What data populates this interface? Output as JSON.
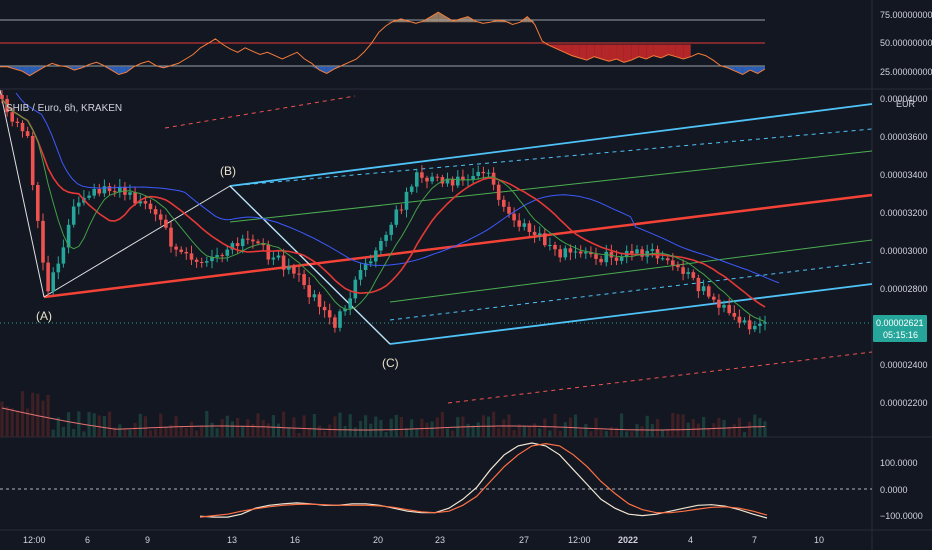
{
  "header": {
    "title": "SHIB / Euro, 6h, KRAKEN"
  },
  "price_scale": {
    "currency": "EUR",
    "ticks": [
      "0.00004000",
      "0.00003600",
      "0.00003400",
      "0.00003200",
      "0.00003000",
      "0.00002800",
      "0.00002400",
      "0.00002200"
    ],
    "last_price": "0.00002621",
    "countdown": "05:15:16"
  },
  "rsi_scale": {
    "ticks": [
      "75.00000000",
      "50.00000000",
      "25.00000000"
    ]
  },
  "osc_scale": {
    "ticks": [
      "100.0000",
      "0.0000",
      "−100.0000"
    ]
  },
  "time_axis": {
    "ticks": [
      "12:00",
      "6",
      "9",
      "13",
      "16",
      "20",
      "23",
      "27",
      "12:00",
      "2022",
      "4",
      "7",
      "10"
    ]
  },
  "wave_labels": [
    "(A)",
    "(B)",
    "(C)"
  ],
  "colors": {
    "background": "#131722",
    "bull": "#26a69a",
    "bear": "#ef5350",
    "channel_blue": "#4fc3f7",
    "median_red": "#f44336",
    "inner_green": "#4caf50",
    "ma_red": "#e53935",
    "ma_green": "#43a047",
    "ma_blue": "#3d5afe",
    "rsi_line": "#f57c3a",
    "rsi_fill_low": "#2f6bd1",
    "rsi_fill_high": "#c62828",
    "last_price_badge": "#26a69a",
    "wave_label": "#e8e3c8"
  },
  "chart_data": [
    {
      "type": "line",
      "panel": "rsi",
      "ylim": [
        10,
        90
      ],
      "levels": [
        70,
        50,
        30
      ],
      "series": [
        {
          "values": [
            30,
            30,
            28,
            26,
            22,
            26,
            30,
            33,
            31,
            30,
            27,
            29,
            32,
            34,
            31,
            27,
            23,
            25,
            30,
            33,
            35,
            31,
            29,
            31,
            33,
            37,
            41,
            47,
            51,
            55,
            50,
            46,
            43,
            47,
            44,
            41,
            43,
            40,
            37,
            40,
            43,
            37,
            33,
            27,
            24,
            28,
            31,
            34,
            37,
            43,
            51,
            61,
            67,
            71,
            73,
            71,
            69,
            71,
            75,
            79,
            75,
            71,
            73,
            75,
            71,
            69,
            70,
            72,
            71,
            68,
            70,
            75,
            68,
            53,
            49,
            46,
            43,
            40,
            38,
            36,
            39,
            37,
            35,
            37,
            34,
            36,
            39,
            37,
            40,
            38,
            41,
            39,
            37,
            39,
            42,
            40,
            36,
            31,
            29,
            26,
            23,
            27,
            24,
            28
          ]
        }
      ]
    },
    {
      "type": "line",
      "panel": "oscillator",
      "ylim": [
        -140,
        160
      ],
      "levels": [
        100,
        0,
        -100
      ],
      "series": [
        {
          "values": [
            -97,
            -100,
            -100,
            -90,
            -70,
            -60,
            -55,
            -52,
            -55,
            -60,
            -60,
            -55,
            -55,
            -60,
            -70,
            -80,
            -85,
            -85,
            -70,
            -40,
            0,
            60,
            110,
            140,
            150,
            140,
            110,
            60,
            10,
            -40,
            -70,
            -90,
            -95,
            -90,
            -80,
            -70,
            -60,
            -58,
            -63,
            -75,
            -90,
            -103
          ]
        },
        {
          "values": [
            -100,
            -95,
            -90,
            -80,
            -72,
            -65,
            -60,
            -57,
            -56,
            -58,
            -60,
            -60,
            -60,
            -62,
            -67,
            -75,
            -82,
            -85,
            -80,
            -60,
            -30,
            20,
            70,
            110,
            140,
            148,
            140,
            110,
            70,
            20,
            -20,
            -55,
            -75,
            -85,
            -85,
            -80,
            -73,
            -67,
            -65,
            -70,
            -80,
            -93
          ]
        }
      ]
    }
  ]
}
